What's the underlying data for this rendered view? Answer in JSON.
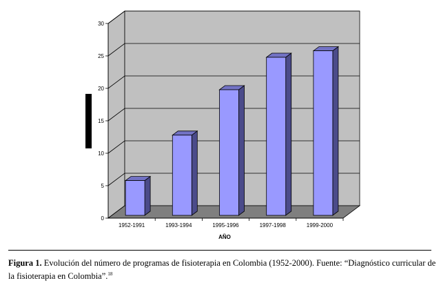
{
  "chart_data": {
    "type": "bar",
    "style": "3d-column",
    "categories": [
      "1952-1991",
      "1993-1994",
      "1995-1996",
      "1997-1998",
      "1999-2000"
    ],
    "values": [
      6,
      13,
      20,
      25,
      26
    ],
    "xlabel": "AÑO",
    "ylabel": "",
    "ylim": [
      0,
      30
    ],
    "yticks": [
      0,
      5,
      10,
      15,
      20,
      25,
      30
    ],
    "grid": true,
    "legend": "none"
  },
  "caption": {
    "label": "Figura 1.",
    "text": "Evolución del número de programas de fisioterapia en Colombia (1952-2000). Fuente: “Diagnóstico curricular de la fisioterapia en Colombia”.",
    "ref": "18"
  },
  "colors": {
    "bar_front": "#9999ff",
    "bar_side": "#4b4b8a",
    "bar_top": "#7272c4",
    "wall": "#c0c0c0",
    "floor": "#7f7f7f",
    "ylabel_block": "#000000"
  }
}
